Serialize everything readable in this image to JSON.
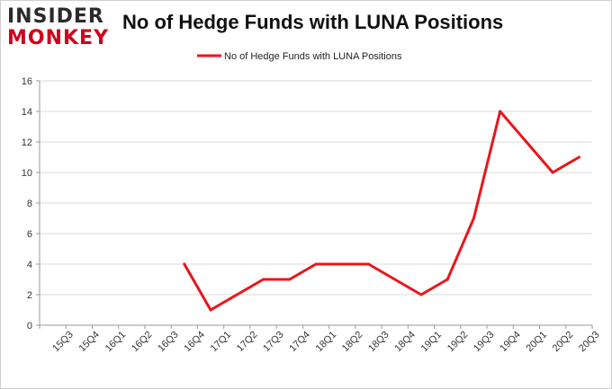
{
  "logo": {
    "line1": "INSIDER",
    "line2": "MONKEY"
  },
  "chart_data": {
    "type": "line",
    "title": "No of Hedge Funds with LUNA Positions",
    "xlabel": "",
    "ylabel": "",
    "categories": [
      "15Q3",
      "15Q4",
      "16Q1",
      "16Q2",
      "16Q3",
      "16Q4",
      "17Q1",
      "17Q2",
      "17Q3",
      "17Q4",
      "18Q1",
      "18Q2",
      "18Q3",
      "18Q4",
      "19Q1",
      "19Q2",
      "19Q3",
      "19Q4",
      "20Q1",
      "20Q2",
      "20Q3"
    ],
    "series": [
      {
        "name": "No of Hedge Funds with LUNA Positions",
        "color": "#e8161b",
        "values": [
          null,
          null,
          null,
          null,
          null,
          4,
          1,
          2,
          3,
          3,
          4,
          4,
          4,
          3,
          2,
          3,
          7,
          14,
          12,
          10,
          11
        ]
      }
    ],
    "ylim": [
      0,
      16
    ],
    "yticks": [
      0,
      2,
      4,
      6,
      8,
      10,
      12,
      14,
      16
    ],
    "grid": true,
    "legend": "top-center"
  }
}
